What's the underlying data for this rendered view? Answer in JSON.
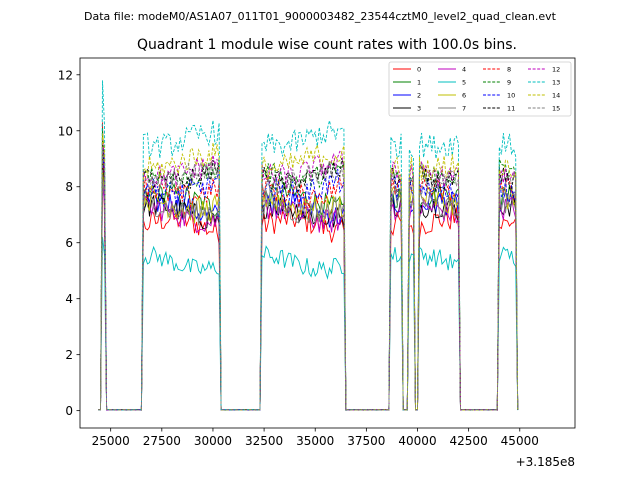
{
  "suptitle": "Data file: modeM0/AS1A07_011T01_9000003482_23544cztM0_level2_quad_clean.evt",
  "chart_data": {
    "type": "line",
    "title": "Quadrant 1 module wise count rates with 100.0s bins.",
    "xlabel": "",
    "ylabel": "",
    "x_offset_label": "+3.185e8",
    "xlim": [
      23500,
      47700
    ],
    "ylim": [
      -0.62,
      12.6
    ],
    "xticks": [
      25000,
      27500,
      30000,
      32500,
      35000,
      37500,
      40000,
      42500,
      45000
    ],
    "xtick_labels": [
      "25000",
      "27500",
      "30000",
      "32500",
      "35000",
      "37500",
      "40000",
      "42500",
      "45000"
    ],
    "yticks": [
      0,
      2,
      4,
      6,
      8,
      10,
      12
    ],
    "ytick_labels": [
      "0",
      "2",
      "4",
      "6",
      "8",
      "10",
      "12"
    ],
    "bin_size_s": 100,
    "legend_position": "top-right",
    "on_segments": [
      [
        24600,
        24700
      ],
      [
        26600,
        30300
      ],
      [
        32400,
        36400
      ],
      [
        38700,
        39200
      ],
      [
        39600,
        39800
      ],
      [
        40100,
        42000
      ],
      [
        44000,
        44800
      ]
    ],
    "series": [
      {
        "name": "0",
        "color": "#ff0000",
        "dashed": false,
        "base": 6.6,
        "start": 10.3,
        "amp": 0.45
      },
      {
        "name": "1",
        "color": "#008000",
        "dashed": false,
        "base": 7.5,
        "start": 10.1,
        "amp": 0.4
      },
      {
        "name": "2",
        "color": "#0000ff",
        "dashed": false,
        "base": 7.2,
        "start": 8.1,
        "amp": 0.45
      },
      {
        "name": "3",
        "color": "#000000",
        "dashed": false,
        "base": 7.1,
        "start": 8.8,
        "amp": 0.45
      },
      {
        "name": "4",
        "color": "#bf00bf",
        "dashed": false,
        "base": 7.0,
        "start": 8.2,
        "amp": 0.45
      },
      {
        "name": "5",
        "color": "#00bfbf",
        "dashed": false,
        "base": 5.3,
        "start": 6.2,
        "amp": 0.35
      },
      {
        "name": "6",
        "color": "#bfbf00",
        "dashed": false,
        "base": 7.4,
        "start": 8.5,
        "amp": 0.5
      },
      {
        "name": "7",
        "color": "#808080",
        "dashed": false,
        "base": 7.3,
        "start": 8.3,
        "amp": 0.45
      },
      {
        "name": "8",
        "color": "#ff0000",
        "dashed": true,
        "base": 7.9,
        "start": 9.2,
        "amp": 0.45
      },
      {
        "name": "9",
        "color": "#008000",
        "dashed": true,
        "base": 8.5,
        "start": 9.6,
        "amp": 0.4
      },
      {
        "name": "10",
        "color": "#0000ff",
        "dashed": true,
        "base": 8.0,
        "start": 9.3,
        "amp": 0.45
      },
      {
        "name": "11",
        "color": "#000000",
        "dashed": true,
        "base": 8.4,
        "start": 9.6,
        "amp": 0.4
      },
      {
        "name": "12",
        "color": "#bf00bf",
        "dashed": true,
        "base": 8.6,
        "start": 9.7,
        "amp": 0.45
      },
      {
        "name": "13",
        "color": "#00bfbf",
        "dashed": true,
        "base": 9.7,
        "start": 11.8,
        "amp": 0.45
      },
      {
        "name": "14",
        "color": "#bfbf00",
        "dashed": true,
        "base": 8.9,
        "start": 9.9,
        "amp": 0.45
      },
      {
        "name": "15",
        "color": "#808080",
        "dashed": true,
        "base": 8.3,
        "start": 9.4,
        "amp": 0.4
      }
    ]
  }
}
